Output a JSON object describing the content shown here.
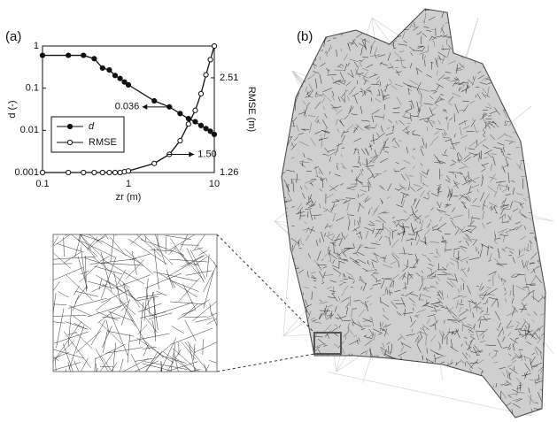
{
  "panel_labels": [
    "(a)",
    "(b)"
  ],
  "chart_data": {
    "type": "line",
    "xlabel": "zr (m)",
    "ylabel": "d (-)",
    "y2label": "RMSE (m)",
    "x": [
      0.1,
      0.2,
      0.3,
      0.4,
      0.5,
      0.6,
      0.7,
      0.8,
      0.9,
      1,
      2,
      3,
      4,
      5,
      6,
      7,
      8,
      9,
      10
    ],
    "series": [
      {
        "name": "d",
        "color": "#111111",
        "marker": "filled",
        "values": [
          0.6,
          0.6,
          0.6,
          0.5,
          0.3,
          0.27,
          0.2,
          0.17,
          0.14,
          0.12,
          0.05,
          0.036,
          0.025,
          0.019,
          0.016,
          0.013,
          0.011,
          0.0095,
          0.008
        ]
      },
      {
        "name": "RMSE",
        "color": "#111111",
        "marker": "open",
        "axis": "y2",
        "values": [
          1.26,
          1.26,
          1.26,
          1.26,
          1.26,
          1.26,
          1.26,
          1.26,
          1.27,
          1.28,
          1.38,
          1.5,
          1.68,
          1.9,
          2.08,
          2.3,
          2.55,
          2.75,
          2.93
        ]
      }
    ],
    "xlim": [
      0.1,
      10
    ],
    "xticks": [
      0.1,
      1,
      10
    ],
    "xlog": true,
    "ylim": [
      0.001,
      1
    ],
    "yticks": [
      0.001,
      0.01,
      0.1,
      1
    ],
    "ylog": true,
    "y2lim": [
      1.26,
      2.93
    ],
    "y2ticks": [
      1.26,
      2.51
    ],
    "legend": "lower-left",
    "annotations": [
      {
        "label": "0.036",
        "x": 3,
        "y": 0.036,
        "axis": "y",
        "side": "left"
      },
      {
        "label": "1.50",
        "x": 3,
        "y": 1.5,
        "axis": "y2",
        "side": "right"
      }
    ]
  }
}
